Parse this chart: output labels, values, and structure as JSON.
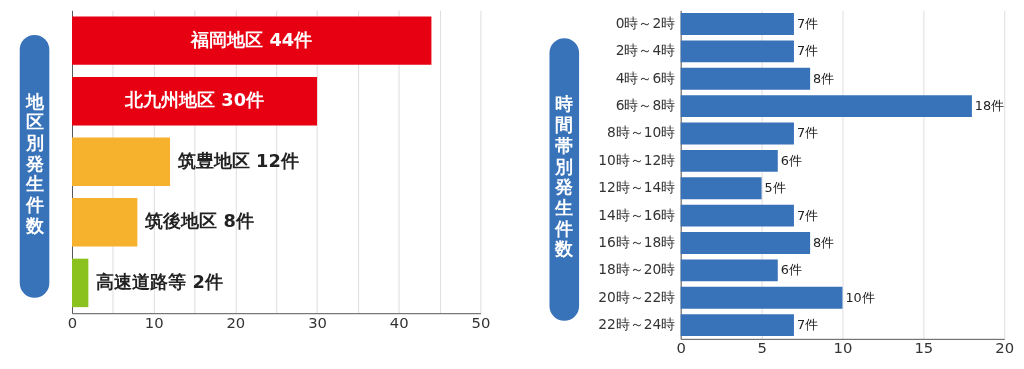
{
  "chart_data": [
    {
      "type": "bar",
      "orientation": "horizontal",
      "ylabel": "地区別発生件数",
      "categories": [
        "福岡地区 44件",
        "北九州地区 30件",
        "筑豊地区 12件",
        "筑後地区 8件",
        "高速道路等 2件"
      ],
      "values": [
        44,
        30,
        12,
        8,
        2
      ],
      "colors": [
        "#e60012",
        "#e60012",
        "#f6b22d",
        "#f6b22d",
        "#8cc21f"
      ],
      "xlim": [
        0,
        50
      ],
      "xticks": [
        0,
        {
          "value": 5,
          "label": null
        },
        10,
        {
          "value": 15,
          "label": null
        },
        20,
        {
          "value": 25,
          "label": null
        },
        30,
        {
          "value": 35,
          "label": null
        },
        40,
        {
          "value": 45,
          "label": null
        },
        50
      ],
      "grid": "x",
      "tick_labels": "x"
    },
    {
      "type": "bar",
      "orientation": "horizontal",
      "ylabel": "時間帯別発生件数",
      "categories": [
        "0時～2時",
        "2時～4時",
        "4時～6時",
        "6時～8時",
        "8時～10時",
        "10時～12時",
        "12時～14時",
        "14時～16時",
        "16時～18時",
        "18時～20時",
        "20時～22時",
        "22時～24時"
      ],
      "values": [
        7,
        7,
        8,
        18,
        7,
        6,
        5,
        7,
        8,
        6,
        10,
        7
      ],
      "colors": [
        "#3872b9",
        "#3872b9",
        "#3872b9",
        "#3872b9",
        "#3872b9",
        "#3872b9",
        "#3872b9",
        "#3872b9",
        "#3872b9",
        "#3872b9",
        "#3872b9",
        "#3872b9"
      ],
      "value_labels": [
        "7件",
        "7件",
        "8件",
        "18件",
        "7件",
        "6件",
        "5件",
        "7件",
        "8件",
        "6件",
        "10件",
        "7件"
      ],
      "xlim": [
        0,
        20
      ],
      "xticks": [
        0,
        5,
        10,
        15,
        20
      ],
      "grid": "x"
    }
  ]
}
